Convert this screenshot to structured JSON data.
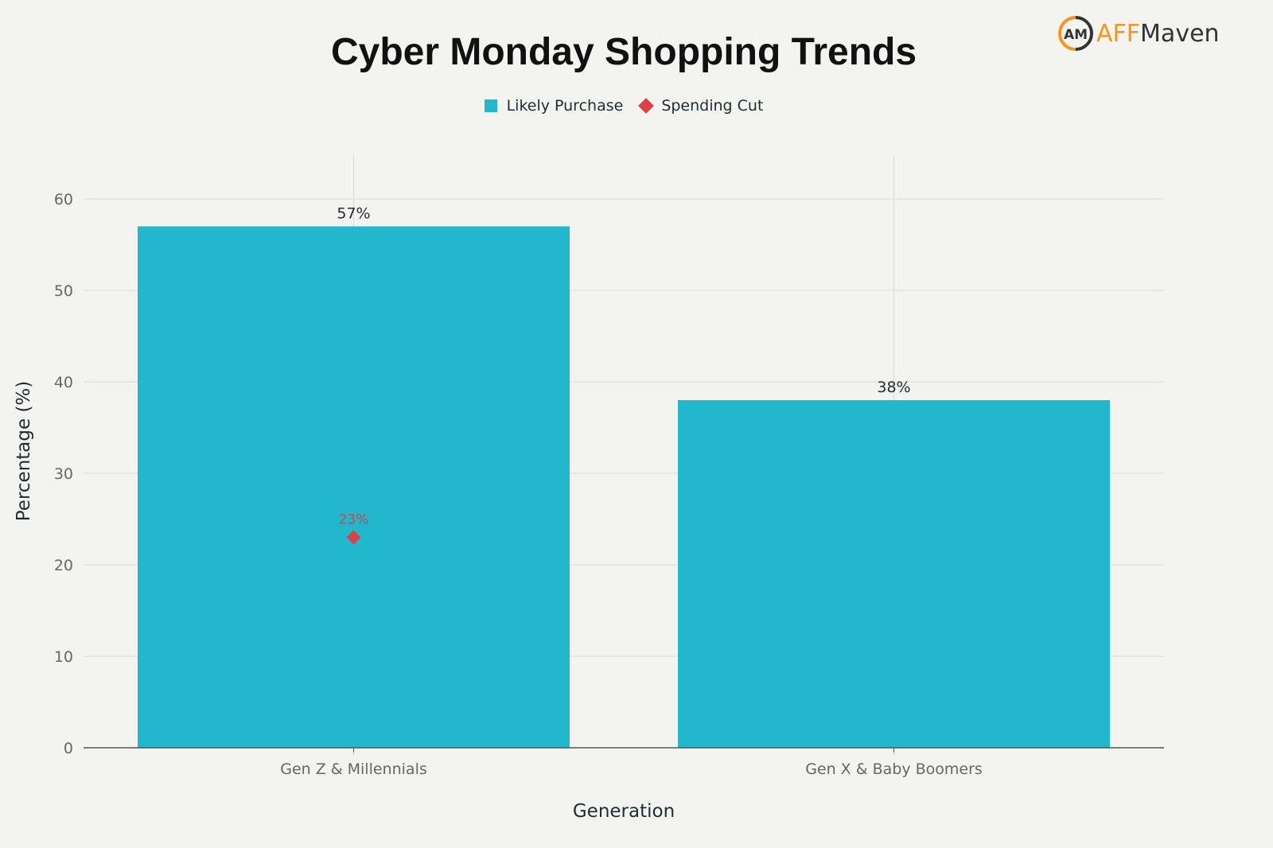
{
  "logo": {
    "text_a": "AFF",
    "text_b": "Maven",
    "colors": {
      "orange": "#f7941d",
      "dark": "#333333"
    }
  },
  "chart_data": {
    "type": "bar",
    "title": "Cyber Monday Shopping Trends",
    "xlabel": "Generation",
    "ylabel": "Percentage (%)",
    "categories": [
      "Gen Z & Millennials",
      "Gen X & Baby Boomers"
    ],
    "ylim": [
      0,
      65
    ],
    "yticks": [
      0,
      10,
      20,
      30,
      40,
      50,
      60
    ],
    "grid": true,
    "legend_placement": "top-center",
    "series": [
      {
        "name": "Likely Purchase",
        "type": "bar",
        "color": "#21b8cd",
        "values": [
          57,
          38
        ],
        "labels": [
          "57%",
          "38%"
        ]
      },
      {
        "name": "Spending Cut",
        "type": "scatter",
        "marker": "diamond",
        "color": "#dc4147",
        "values": [
          23,
          null
        ],
        "labels": [
          "23%",
          null
        ]
      }
    ]
  }
}
